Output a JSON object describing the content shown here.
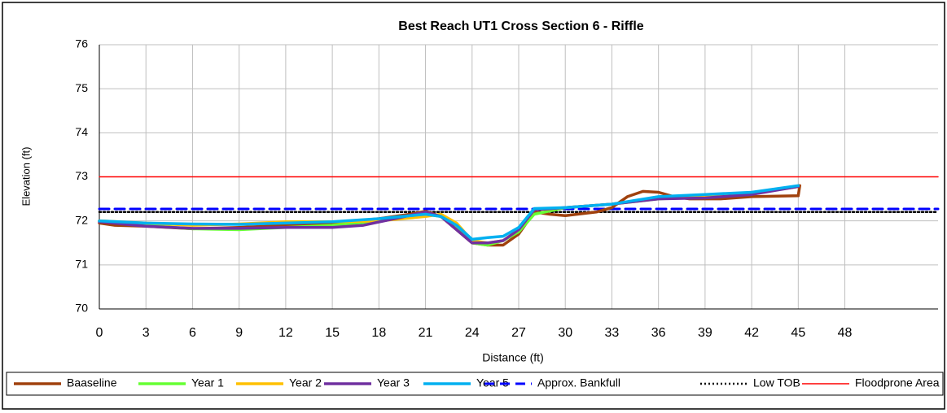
{
  "chart_data": {
    "type": "line",
    "title": "Best Reach UT1 Cross Section 6 - Riffle",
    "xlabel": "Distance (ft)",
    "ylabel": "Elevation (ft)",
    "xlim": [
      0,
      54
    ],
    "ylim": [
      70,
      76
    ],
    "xticks": [
      0,
      3,
      6,
      9,
      12,
      15,
      18,
      21,
      24,
      27,
      30,
      33,
      36,
      39,
      42,
      45,
      48
    ],
    "yticks": [
      70,
      71,
      72,
      73,
      74,
      75,
      76
    ],
    "grid": true,
    "legend": "bottom",
    "series": [
      {
        "name": "Baaseline",
        "color": "#a0410d",
        "style": "solid",
        "x": [
          0,
          1,
          3,
          6,
          9,
          12,
          15,
          18,
          20,
          21,
          22,
          23,
          24,
          25,
          26,
          27,
          28,
          29,
          30,
          32,
          33,
          34,
          35,
          36,
          37,
          38,
          40,
          42,
          45,
          45.1
        ],
        "values": [
          71.95,
          71.9,
          71.88,
          71.82,
          71.85,
          71.9,
          71.95,
          72.05,
          72.15,
          72.22,
          72.1,
          71.8,
          71.5,
          71.45,
          71.45,
          71.7,
          72.2,
          72.15,
          72.12,
          72.2,
          72.3,
          72.55,
          72.67,
          72.65,
          72.55,
          72.5,
          72.5,
          72.55,
          72.57,
          72.8
        ]
      },
      {
        "name": "Year 1",
        "color": "#66ff33",
        "style": "solid",
        "x": [
          0,
          3,
          6,
          9,
          12,
          15,
          18,
          21,
          22,
          23,
          24,
          25,
          26,
          27,
          28,
          30,
          33,
          36,
          39,
          42,
          45
        ],
        "values": [
          72.0,
          71.9,
          71.82,
          71.8,
          71.85,
          71.9,
          72.0,
          72.15,
          72.1,
          71.85,
          71.5,
          71.45,
          71.55,
          71.75,
          72.15,
          72.3,
          72.38,
          72.5,
          72.55,
          72.62,
          72.78
        ]
      },
      {
        "name": "Year 2",
        "color": "#ffc000",
        "style": "solid",
        "x": [
          0,
          3,
          6,
          9,
          12,
          15,
          18,
          21,
          22,
          23,
          24,
          25,
          26,
          27,
          28,
          30,
          33,
          36,
          39,
          42,
          45
        ],
        "values": [
          72.0,
          71.95,
          71.9,
          71.93,
          71.98,
          71.98,
          72.0,
          72.1,
          72.15,
          71.95,
          71.55,
          71.5,
          71.55,
          71.8,
          72.25,
          72.3,
          72.38,
          72.52,
          72.57,
          72.62,
          72.78
        ]
      },
      {
        "name": "Year 3",
        "color": "#7030a0",
        "style": "solid",
        "x": [
          0,
          3,
          6,
          9,
          12,
          15,
          17,
          19,
          21,
          22,
          23,
          24,
          25,
          26,
          27,
          28,
          30,
          33,
          36,
          39,
          42,
          45
        ],
        "values": [
          71.98,
          71.88,
          71.83,
          71.83,
          71.85,
          71.85,
          71.9,
          72.05,
          72.2,
          72.1,
          71.8,
          71.5,
          71.5,
          71.55,
          71.8,
          72.25,
          72.3,
          72.38,
          72.5,
          72.52,
          72.6,
          72.78
        ]
      },
      {
        "name": "Year 5",
        "color": "#00b0f0",
        "style": "solid",
        "x": [
          0,
          3,
          6,
          9,
          12,
          15,
          18,
          21,
          22,
          23,
          24,
          25,
          26,
          27,
          28,
          30,
          33,
          36,
          39,
          42,
          45
        ],
        "values": [
          72.0,
          71.95,
          71.93,
          71.92,
          71.95,
          71.98,
          72.05,
          72.15,
          72.1,
          71.9,
          71.58,
          71.62,
          71.65,
          71.85,
          72.28,
          72.3,
          72.38,
          72.55,
          72.6,
          72.65,
          72.8
        ]
      },
      {
        "name": "Approx. Bankfull",
        "color": "#0000ff",
        "style": "dashed",
        "x": [
          0,
          54
        ],
        "values": [
          72.27,
          72.27
        ]
      },
      {
        "name": "Low TOB",
        "color": "#000000",
        "style": "dotted",
        "x": [
          0,
          54
        ],
        "values": [
          72.2,
          72.2
        ]
      },
      {
        "name": "Floodprone Area",
        "color": "#ff0000",
        "style": "thin",
        "x": [
          0,
          54
        ],
        "values": [
          73,
          73
        ]
      }
    ]
  }
}
